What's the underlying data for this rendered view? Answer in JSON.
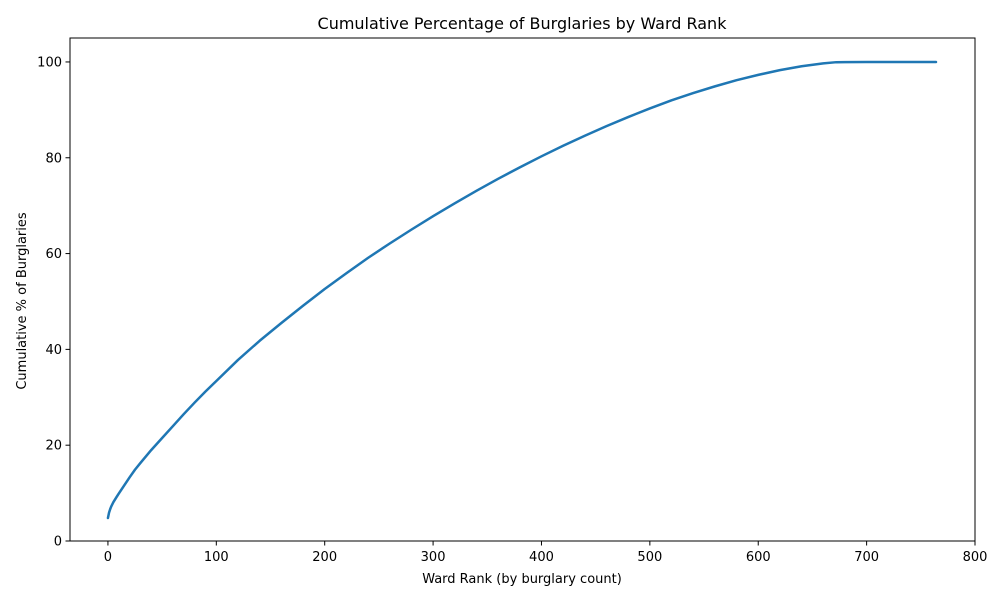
{
  "chart_data": {
    "type": "line",
    "title": "Cumulative Percentage of Burglaries by Ward Rank",
    "xlabel": "Ward Rank (by burglary count)",
    "ylabel": "Cumulative % of Burglaries",
    "xlim": [
      -35,
      800
    ],
    "ylim": [
      0,
      105
    ],
    "xticks": [
      0,
      100,
      200,
      300,
      400,
      500,
      600,
      700,
      800
    ],
    "yticks": [
      0,
      20,
      40,
      60,
      80,
      100
    ],
    "grid": false,
    "legend": "none",
    "series": [
      {
        "color": "#1f77b4",
        "x": [
          0,
          1,
          2,
          3,
          5,
          8,
          10,
          15,
          20,
          25,
          30,
          40,
          50,
          60,
          70,
          80,
          90,
          100,
          120,
          140,
          160,
          180,
          200,
          220,
          240,
          260,
          280,
          300,
          320,
          340,
          360,
          380,
          400,
          420,
          440,
          460,
          480,
          500,
          520,
          540,
          560,
          580,
          600,
          620,
          640,
          660,
          672,
          680,
          700,
          720,
          740,
          764
        ],
        "y": [
          4.8,
          5.9,
          6.6,
          7.2,
          8.1,
          9.2,
          9.9,
          11.6,
          13.3,
          14.9,
          16.3,
          19.0,
          21.5,
          24.0,
          26.5,
          28.9,
          31.2,
          33.4,
          37.8,
          41.8,
          45.5,
          49.1,
          52.6,
          55.9,
          59.1,
          62.1,
          65.0,
          67.8,
          70.5,
          73.1,
          75.6,
          78.0,
          80.3,
          82.5,
          84.6,
          86.6,
          88.5,
          90.3,
          92.0,
          93.5,
          94.9,
          96.2,
          97.3,
          98.3,
          99.1,
          99.7,
          99.95,
          99.97,
          99.98,
          99.99,
          100.0,
          100.0
        ]
      }
    ]
  }
}
